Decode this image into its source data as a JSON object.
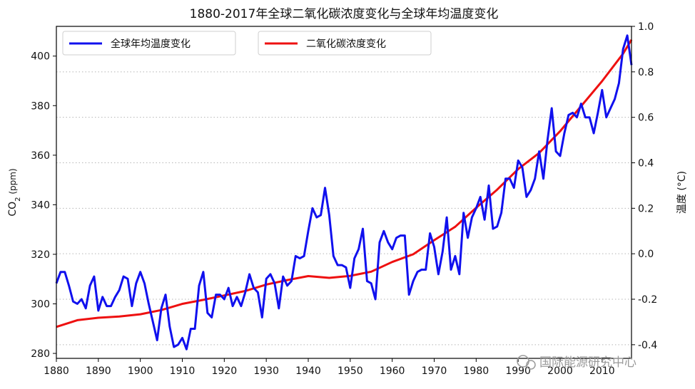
{
  "chart_data": {
    "type": "line",
    "title": "1880-2017年全球二氧化碳浓度变化与全球年均温度变化",
    "xlabel": "",
    "ylabel_left": "CO2 (ppm)",
    "ylabel_right": "温度 (°C)",
    "xlim": [
      1880,
      2017
    ],
    "ylim_left": [
      278,
      412
    ],
    "ylim_right": [
      -0.46,
      1.0
    ],
    "x_ticks": [
      1880,
      1890,
      1900,
      1910,
      1920,
      1930,
      1940,
      1950,
      1960,
      1970,
      1980,
      1990,
      2000,
      2010
    ],
    "y_ticks_left": [
      280,
      300,
      320,
      340,
      360,
      380,
      400
    ],
    "y_ticks_right": [
      "-0.4",
      "-0.2",
      "0.0",
      "0.2",
      "0.4",
      "0.6",
      "0.8",
      "1.0"
    ],
    "y_ticks_right_values": [
      -0.4,
      -0.2,
      0.0,
      0.2,
      0.4,
      0.6,
      0.8,
      1.0
    ],
    "grid": "horizontal dotted",
    "legend_position": "top-left",
    "series": [
      {
        "name": "全球年均温度变化",
        "axis": "right",
        "color": "#1010ee",
        "x": [
          1880,
          1881,
          1882,
          1883,
          1884,
          1885,
          1886,
          1887,
          1888,
          1889,
          1890,
          1891,
          1892,
          1893,
          1894,
          1895,
          1896,
          1897,
          1898,
          1899,
          1900,
          1901,
          1902,
          1903,
          1904,
          1905,
          1906,
          1907,
          1908,
          1909,
          1910,
          1911,
          1912,
          1913,
          1914,
          1915,
          1916,
          1917,
          1918,
          1919,
          1920,
          1921,
          1922,
          1923,
          1924,
          1925,
          1926,
          1927,
          1928,
          1929,
          1930,
          1931,
          1932,
          1933,
          1934,
          1935,
          1936,
          1937,
          1938,
          1939,
          1940,
          1941,
          1942,
          1943,
          1944,
          1945,
          1946,
          1947,
          1948,
          1949,
          1950,
          1951,
          1952,
          1953,
          1954,
          1955,
          1956,
          1957,
          1958,
          1959,
          1960,
          1961,
          1962,
          1963,
          1964,
          1965,
          1966,
          1967,
          1968,
          1969,
          1970,
          1971,
          1972,
          1973,
          1974,
          1975,
          1976,
          1977,
          1978,
          1979,
          1980,
          1981,
          1982,
          1983,
          1984,
          1985,
          1986,
          1987,
          1988,
          1989,
          1990,
          1991,
          1992,
          1993,
          1994,
          1995,
          1996,
          1997,
          1998,
          1999,
          2000,
          2001,
          2002,
          2003,
          2004,
          2005,
          2006,
          2007,
          2008,
          2009,
          2010,
          2011,
          2012,
          2013,
          2014,
          2015,
          2016,
          2017
        ],
        "values": [
          -0.13,
          -0.08,
          -0.08,
          -0.14,
          -0.21,
          -0.22,
          -0.2,
          -0.24,
          -0.14,
          -0.1,
          -0.25,
          -0.19,
          -0.23,
          -0.23,
          -0.19,
          -0.16,
          -0.1,
          -0.11,
          -0.23,
          -0.13,
          -0.08,
          -0.13,
          -0.22,
          -0.3,
          -0.38,
          -0.24,
          -0.18,
          -0.32,
          -0.41,
          -0.4,
          -0.37,
          -0.42,
          -0.33,
          -0.33,
          -0.14,
          -0.08,
          -0.26,
          -0.28,
          -0.18,
          -0.18,
          -0.2,
          -0.15,
          -0.23,
          -0.19,
          -0.23,
          -0.17,
          -0.09,
          -0.15,
          -0.17,
          -0.28,
          -0.11,
          -0.09,
          -0.13,
          -0.24,
          -0.1,
          -0.14,
          -0.12,
          -0.01,
          -0.02,
          -0.01,
          0.1,
          0.2,
          0.16,
          0.17,
          0.29,
          0.17,
          -0.01,
          -0.05,
          -0.05,
          -0.06,
          -0.15,
          -0.02,
          0.02,
          0.11,
          -0.12,
          -0.13,
          -0.2,
          0.05,
          0.1,
          0.05,
          0.02,
          0.07,
          0.08,
          0.08,
          -0.18,
          -0.12,
          -0.08,
          -0.07,
          -0.07,
          0.09,
          0.03,
          -0.09,
          0.01,
          0.16,
          -0.07,
          -0.01,
          -0.09,
          0.18,
          0.07,
          0.16,
          0.2,
          0.25,
          0.15,
          0.3,
          0.11,
          0.12,
          0.18,
          0.33,
          0.33,
          0.29,
          0.41,
          0.38,
          0.25,
          0.28,
          0.33,
          0.45,
          0.33,
          0.5,
          0.64,
          0.45,
          0.43,
          0.53,
          0.61,
          0.62,
          0.6,
          0.66,
          0.6,
          0.6,
          0.53,
          0.62,
          0.72,
          0.6,
          0.64,
          0.68,
          0.75,
          0.9,
          0.96,
          0.83
        ]
      },
      {
        "name": "二氧化碳浓度变化",
        "axis": "left",
        "color": "#ee1010",
        "x": [
          1880,
          1885,
          1890,
          1895,
          1900,
          1905,
          1910,
          1915,
          1920,
          1925,
          1930,
          1935,
          1940,
          1945,
          1950,
          1955,
          1960,
          1965,
          1970,
          1975,
          1980,
          1985,
          1990,
          1995,
          2000,
          2005,
          2010,
          2015,
          2017
        ],
        "values": [
          290.7,
          293.4,
          294.4,
          294.9,
          295.8,
          297.5,
          300.0,
          301.6,
          303.4,
          305.2,
          307.8,
          309.6,
          311.2,
          310.5,
          311.3,
          313.0,
          316.9,
          320.0,
          325.7,
          331.1,
          338.8,
          346.1,
          354.4,
          360.9,
          369.7,
          379.8,
          389.9,
          401.0,
          406.6
        ]
      }
    ],
    "legend_items": [
      "全球年均温度变化",
      "二氧化碳浓度变化"
    ],
    "watermark": "国际能源研究中心"
  }
}
